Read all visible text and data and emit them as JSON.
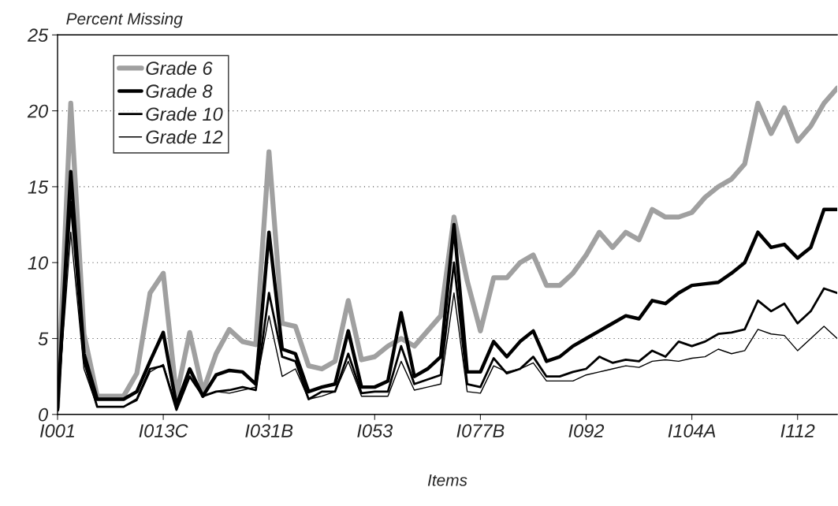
{
  "chart_data": {
    "type": "line",
    "title": "Percent Missing",
    "xlabel": "Items",
    "categories": [
      "I001",
      null,
      null,
      null,
      null,
      null,
      null,
      null,
      "I013C",
      null,
      null,
      null,
      null,
      null,
      null,
      null,
      "I031B",
      null,
      null,
      null,
      null,
      null,
      null,
      null,
      "I053",
      null,
      null,
      null,
      null,
      null,
      null,
      null,
      "I077B",
      null,
      null,
      null,
      null,
      null,
      null,
      null,
      "I092",
      null,
      null,
      null,
      null,
      null,
      null,
      null,
      "I104A",
      null,
      null,
      null,
      null,
      null,
      null,
      null,
      "I112",
      null,
      null,
      null
    ],
    "series": [
      {
        "name": "Grade 6",
        "color": "#a0a0a0",
        "values": [
          0.5,
          20.5,
          5.3,
          1.2,
          1.2,
          1.2,
          2.7,
          8.0,
          9.3,
          1.2,
          5.4,
          1.5,
          4.0,
          5.6,
          4.8,
          4.6,
          17.3,
          6.0,
          5.8,
          3.2,
          3.0,
          3.5,
          7.5,
          3.6,
          3.8,
          4.5,
          5.0,
          4.5,
          5.5,
          6.5,
          13.0,
          8.8,
          5.5,
          9.0,
          9.0,
          10.0,
          10.5,
          8.5,
          8.5,
          9.3,
          10.5,
          12.0,
          11.0,
          12.0,
          11.5,
          13.5,
          13.0,
          13.0,
          13.3,
          14.3,
          15.0,
          15.5,
          16.5,
          20.5,
          18.5,
          20.2,
          18.0,
          19.0,
          20.5,
          21.5
        ]
      },
      {
        "name": "Grade 8",
        "color": "#000000",
        "values": [
          0.3,
          16.0,
          4.0,
          1.0,
          1.0,
          1.0,
          1.5,
          3.5,
          5.4,
          0.6,
          3.0,
          1.2,
          2.6,
          2.9,
          2.8,
          2.0,
          12.0,
          4.3,
          4.0,
          1.5,
          1.8,
          2.0,
          5.5,
          1.8,
          1.8,
          2.2,
          6.7,
          2.5,
          3.0,
          3.8,
          12.5,
          2.8,
          2.8,
          4.8,
          3.8,
          4.8,
          5.5,
          3.5,
          3.8,
          4.5,
          5.0,
          5.5,
          6.0,
          6.5,
          6.3,
          7.5,
          7.3,
          8.0,
          8.5,
          8.6,
          8.7,
          9.3,
          10.0,
          12.0,
          11.0,
          11.2,
          10.3,
          11.0,
          13.5,
          13.5
        ]
      },
      {
        "name": "Grade 10",
        "color": "#000000",
        "values": [
          0.3,
          14.0,
          3.5,
          0.5,
          0.5,
          0.5,
          1.0,
          3.0,
          3.2,
          0.3,
          2.5,
          1.2,
          1.5,
          1.6,
          1.8,
          1.6,
          8.0,
          3.8,
          3.5,
          1.0,
          1.5,
          1.5,
          4.0,
          1.4,
          1.5,
          1.5,
          4.5,
          2.0,
          2.3,
          2.6,
          10.0,
          2.0,
          1.8,
          3.7,
          2.7,
          3.0,
          3.8,
          2.5,
          2.5,
          2.8,
          3.0,
          3.8,
          3.4,
          3.6,
          3.5,
          4.2,
          3.8,
          4.8,
          4.5,
          4.8,
          5.3,
          5.4,
          5.6,
          7.5,
          6.8,
          7.3,
          6.0,
          6.8,
          8.3,
          8.0
        ]
      },
      {
        "name": "Grade 12",
        "color": "#000000",
        "values": [
          0.3,
          12.0,
          3.0,
          0.5,
          0.5,
          0.5,
          0.9,
          2.8,
          3.3,
          0.5,
          2.5,
          1.2,
          1.5,
          1.4,
          1.6,
          1.8,
          6.5,
          2.5,
          3.0,
          1.0,
          1.2,
          1.5,
          3.5,
          1.2,
          1.2,
          1.2,
          3.5,
          1.6,
          1.8,
          2.0,
          8.0,
          1.5,
          1.4,
          3.2,
          2.8,
          3.0,
          3.4,
          2.2,
          2.2,
          2.2,
          2.6,
          2.8,
          3.0,
          3.2,
          3.1,
          3.5,
          3.6,
          3.5,
          3.7,
          3.8,
          4.3,
          4.0,
          4.2,
          5.6,
          5.3,
          5.2,
          4.2,
          5.0,
          5.8,
          5.0
        ]
      }
    ],
    "ylim": [
      0,
      25
    ],
    "yticks": [
      0,
      5,
      10,
      15,
      20,
      25
    ],
    "grid": "y",
    "legend": "top left"
  }
}
